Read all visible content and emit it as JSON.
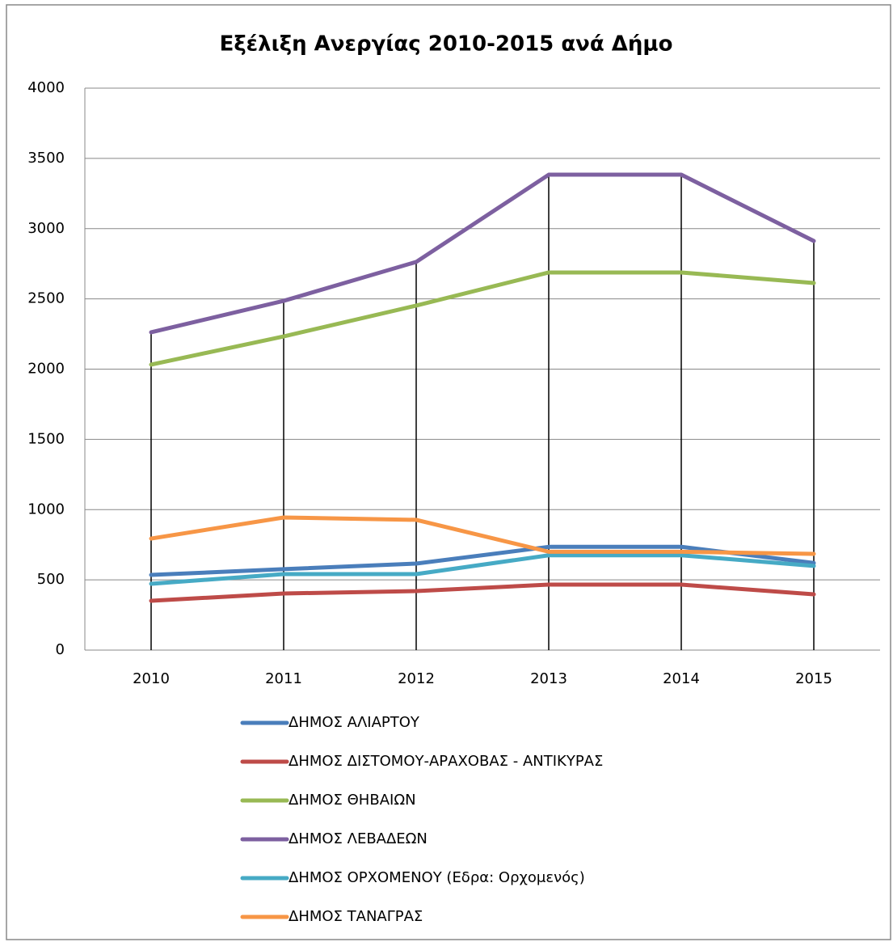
{
  "chart_data": {
    "type": "line",
    "title": "Εξέλιξη Ανεργίας 2010-2015 ανά Δήμο",
    "categories": [
      "2010",
      "2011",
      "2012",
      "2013",
      "2014",
      "2015"
    ],
    "series": [
      {
        "name": "ΔΗΜΟΣ ΑΛΙΑΡΤΟΥ",
        "color": "#4a7ebb",
        "values": [
          535,
          576,
          616,
          735,
          735,
          620
        ]
      },
      {
        "name": "ΔΗΜΟΣ ΔΙΣΤΟΜΟΥ-ΑΡΑΧΟΒΑΣ - ΑΝΤΙΚΥΡΑΣ",
        "color": "#be4b48",
        "values": [
          351,
          403,
          420,
          466,
          466,
          397
        ]
      },
      {
        "name": "ΔΗΜΟΣ ΘΗΒΑΙΩΝ",
        "color": "#98b954",
        "values": [
          2032,
          2233,
          2452,
          2688,
          2688,
          2613
        ]
      },
      {
        "name": "ΔΗΜΟΣ ΛΕΒΑΔΕΩΝ",
        "color": "#7d60a0",
        "values": [
          2262,
          2486,
          2763,
          3384,
          3384,
          2912
        ]
      },
      {
        "name": "ΔΗΜΟΣ ΟΡΧΟΜΕΝΟΥ (Εδρα: Ορχομενός)",
        "color": "#46aac5",
        "values": [
          472,
          541,
          541,
          675,
          675,
          599
        ]
      },
      {
        "name": "ΔΗΜΟΣ ΤΑΝΑΓΡΑΣ",
        "color": "#f79646",
        "values": [
          794,
          944,
          927,
          700,
          700,
          685
        ]
      }
    ],
    "ylim": [
      0,
      4000
    ],
    "yticks": [
      0,
      500,
      1000,
      1500,
      2000,
      2500,
      3000,
      3500,
      4000
    ],
    "grid": true,
    "drop_lines": true,
    "legend": "bottom"
  }
}
